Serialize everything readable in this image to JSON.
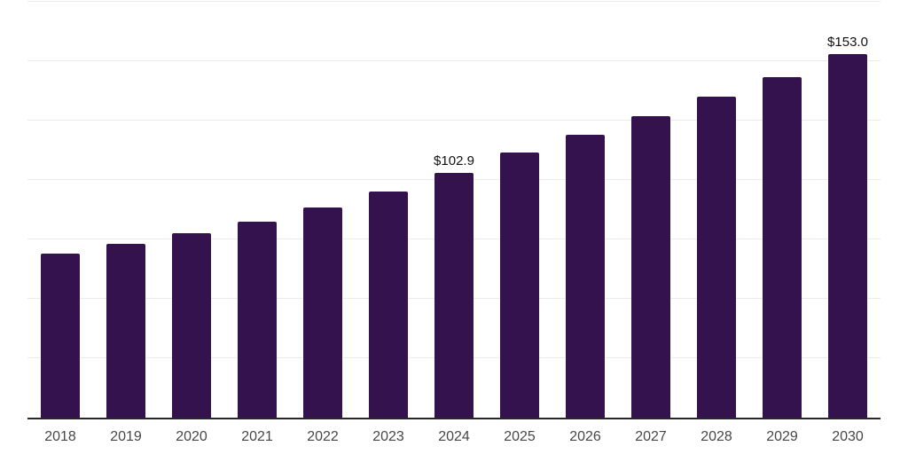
{
  "chart_data": {
    "type": "bar",
    "title": "",
    "xlabel": "",
    "ylabel": "",
    "categories": [
      "2018",
      "2019",
      "2020",
      "2021",
      "2022",
      "2023",
      "2024",
      "2025",
      "2026",
      "2027",
      "2028",
      "2029",
      "2030"
    ],
    "values": [
      69.1,
      73.2,
      77.7,
      82.5,
      88.4,
      95.1,
      102.9,
      111.4,
      118.9,
      126.7,
      134.9,
      143.4,
      153.0
    ],
    "point_labels": [
      "",
      "",
      "",
      "",
      "",
      "",
      "$102.9",
      "",
      "",
      "",
      "",
      "",
      "$153.0"
    ],
    "ylim": [
      0,
      175
    ],
    "gridline_step": 25,
    "grid": "horizontal",
    "y_tick_labels_visible": false,
    "legend_position": "none",
    "colors": {
      "bar": "#34124E",
      "gridline": "#ebebeb",
      "axis_line": "#282828",
      "tick_label": "#474747",
      "value_label": "#111111",
      "background": "#ffffff"
    }
  }
}
